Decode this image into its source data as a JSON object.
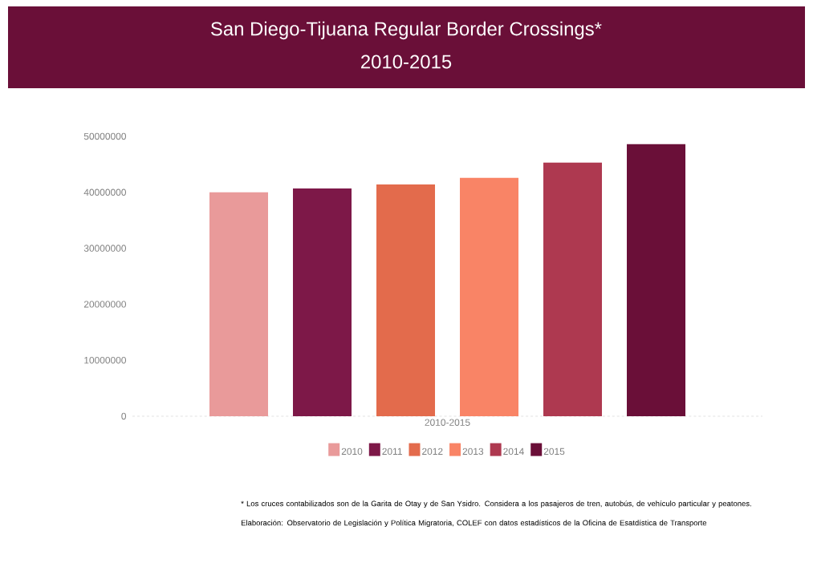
{
  "chart_data": {
    "type": "bar",
    "title": "San Diego-Tijuana Regular Border Crossings*",
    "subtitle": "2010-2015",
    "categories": [
      "2010-2015"
    ],
    "series": [
      {
        "name": "2010",
        "color": "#e99a9a",
        "values": [
          40000000
        ]
      },
      {
        "name": "2011",
        "color": "#7d1848",
        "values": [
          40700000
        ]
      },
      {
        "name": "2012",
        "color": "#e36b4c",
        "values": [
          41400000
        ]
      },
      {
        "name": "2013",
        "color": "#f98466",
        "values": [
          42600000
        ]
      },
      {
        "name": "2014",
        "color": "#ae3950",
        "values": [
          45300000
        ]
      },
      {
        "name": "2015",
        "color": "#6a0f38",
        "values": [
          48600000
        ]
      }
    ],
    "ylim": [
      0,
      50000000
    ],
    "yticks": [
      0,
      10000000,
      20000000,
      30000000,
      40000000,
      50000000
    ],
    "legend": "bottom",
    "annotations": [
      "*  Los cruces contabilizados son de la Garita de Otay y de San Ysidro. Considera a los pasajeros de tren, autobús, de vehículo particular y peatones.",
      "Elaboración: Observatorio de Legislación y Política Migratoria, COLEF con datos estadísticos de la Oficina de Esatdística de Transporte"
    ]
  }
}
